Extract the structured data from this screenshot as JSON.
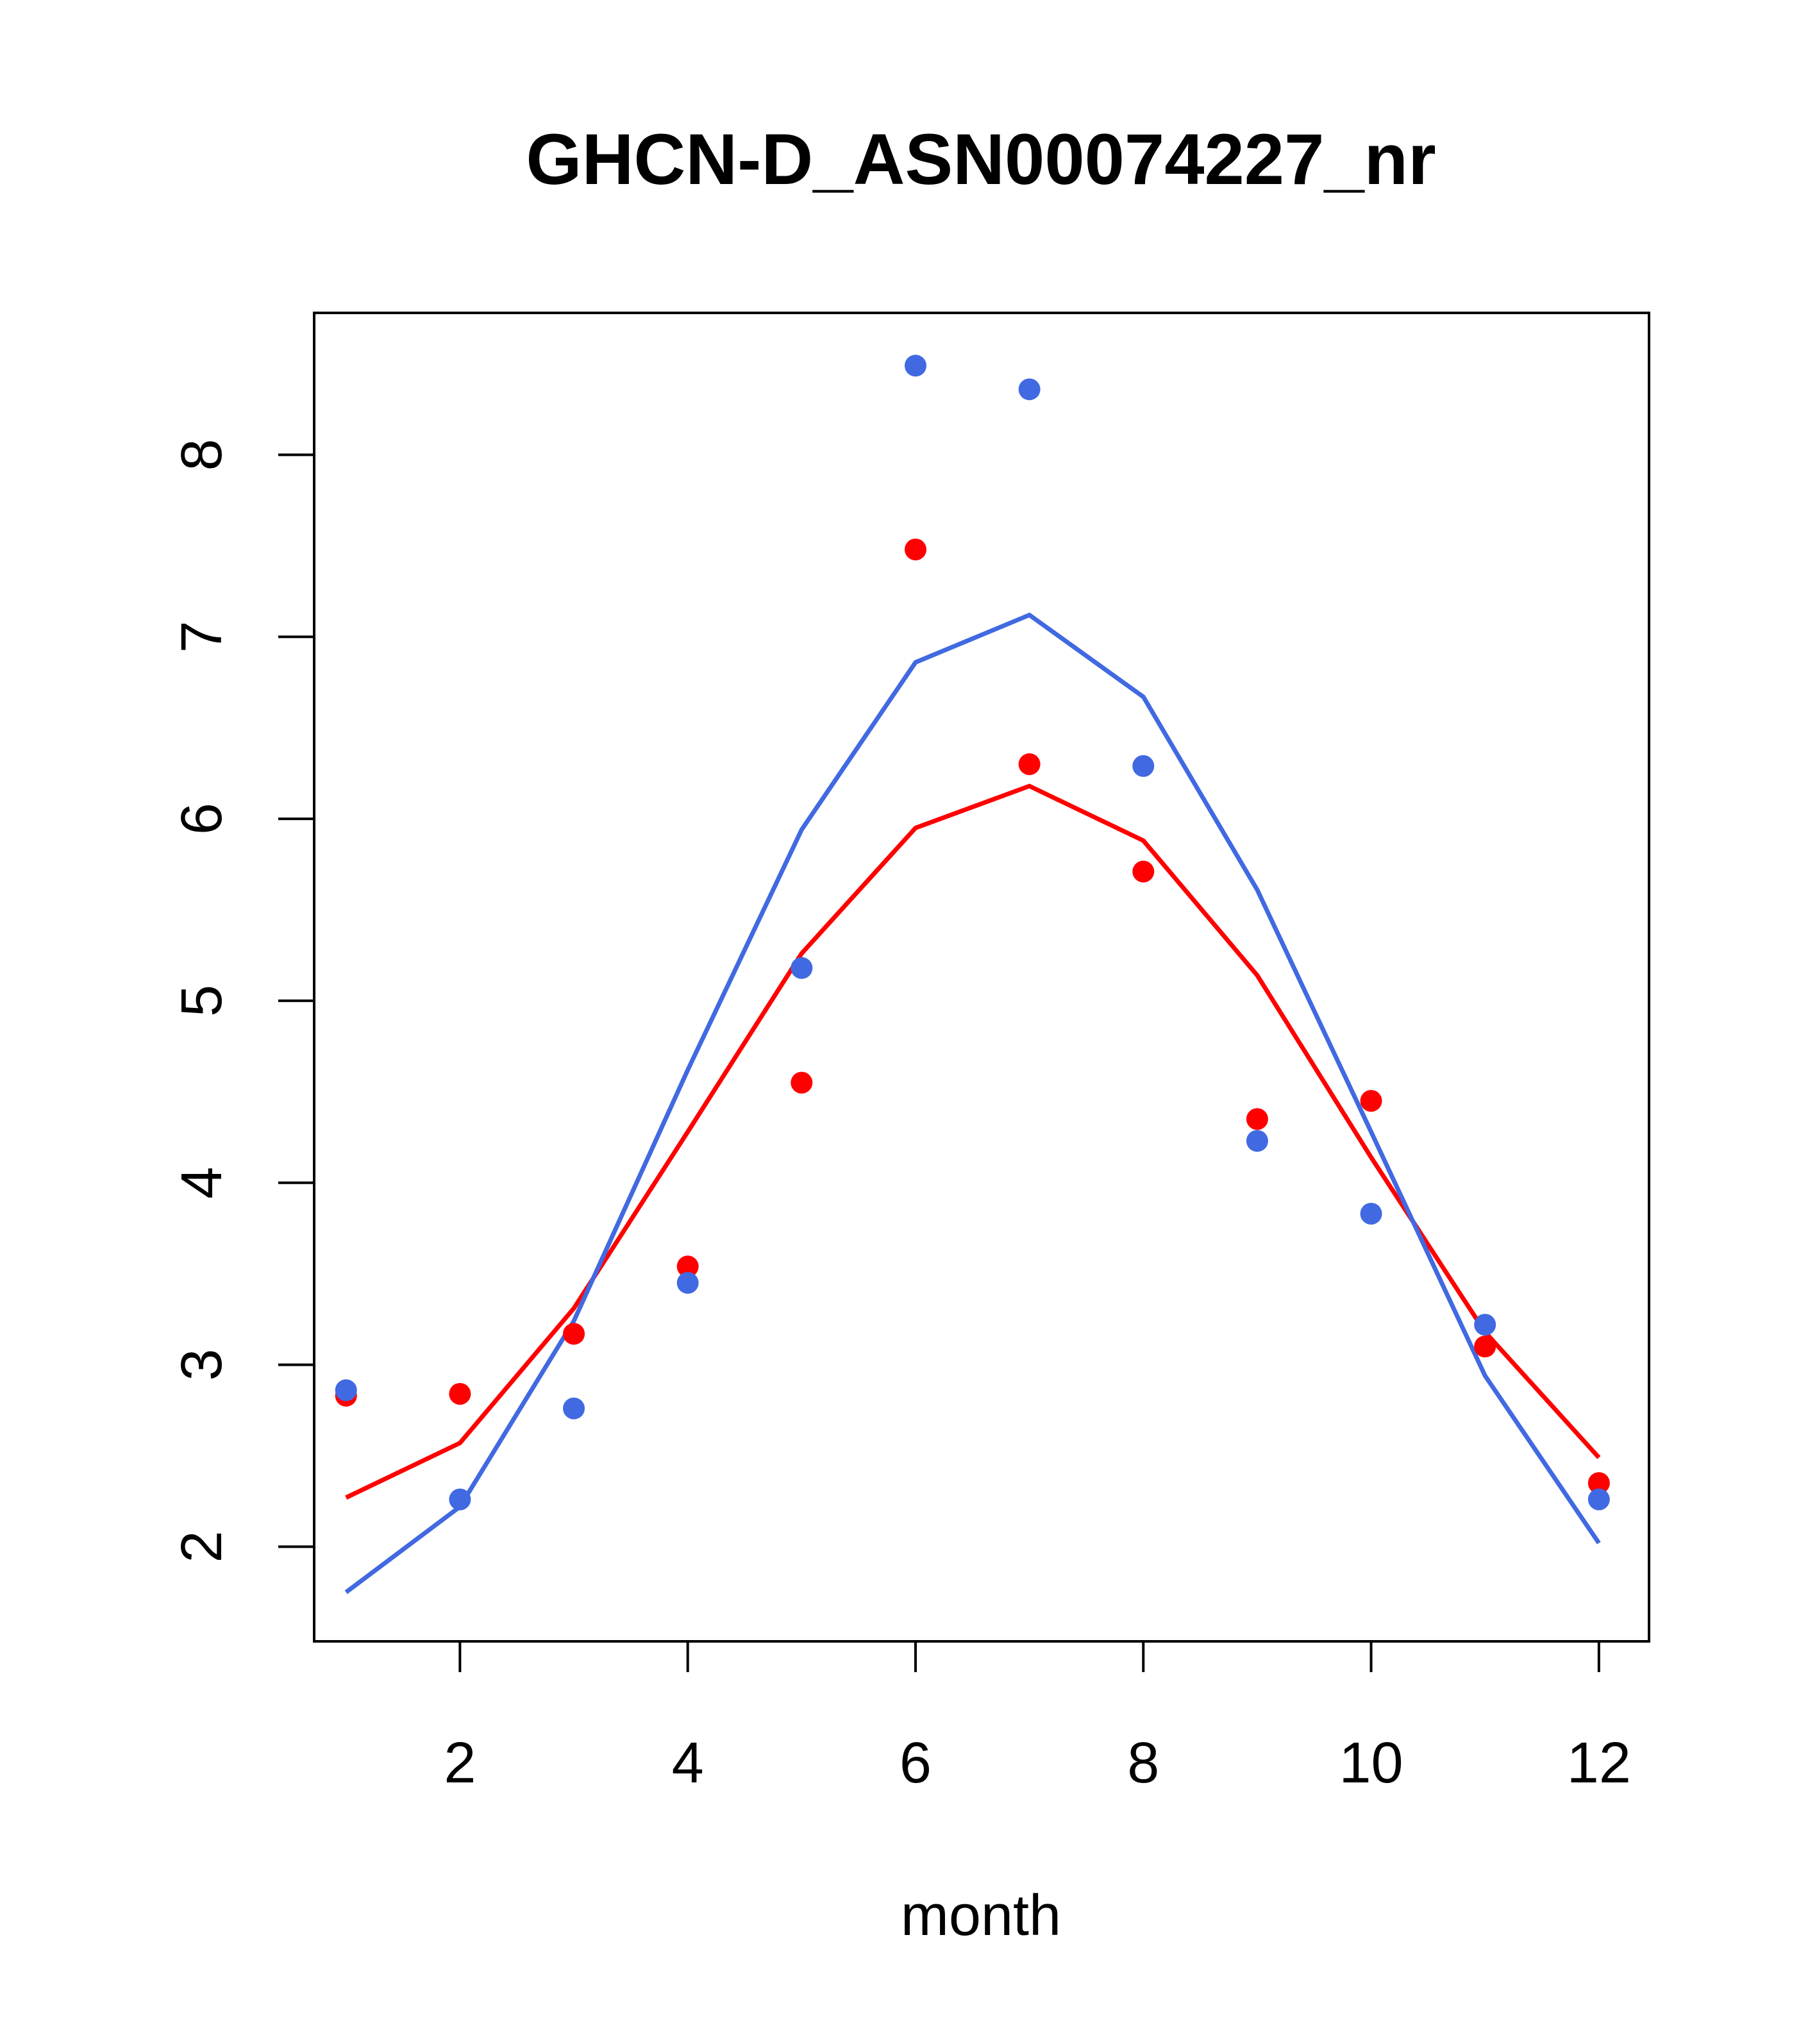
{
  "chart_data": {
    "type": "scatter",
    "title": "GHCN-D_ASN00074227_nr",
    "xlabel": "month",
    "ylabel": "",
    "xlim": [
      0.72,
      12.44
    ],
    "ylim": [
      1.48,
      8.78
    ],
    "x_ticks": [
      2,
      4,
      6,
      8,
      10,
      12
    ],
    "y_ticks": [
      2,
      3,
      4,
      5,
      6,
      7,
      8
    ],
    "x_tick_labels": [
      "2",
      "4",
      "6",
      "8",
      "10",
      "12"
    ],
    "y_tick_labels": [
      "2",
      "3",
      "4",
      "5",
      "6",
      "7",
      "8"
    ],
    "grid": false,
    "legend": "none",
    "x": [
      1,
      2,
      3,
      4,
      5,
      6,
      7,
      8,
      9,
      10,
      11,
      12
    ],
    "series": [
      {
        "color": "#ff0000",
        "points": [
          2.83,
          2.84,
          3.17,
          3.54,
          4.55,
          7.48,
          6.3,
          5.71,
          4.35,
          4.45,
          3.1,
          2.35
        ],
        "line": [
          2.27,
          2.57,
          3.31,
          4.28,
          5.26,
          5.95,
          6.18,
          5.88,
          5.14,
          4.14,
          3.18,
          2.49
        ]
      },
      {
        "color": "#4169e1",
        "points": [
          2.86,
          2.26,
          2.76,
          3.45,
          5.18,
          8.49,
          8.36,
          6.29,
          4.23,
          3.83,
          3.22,
          2.26
        ],
        "line": [
          1.75,
          2.22,
          3.24,
          4.62,
          5.94,
          6.86,
          7.12,
          6.67,
          5.61,
          4.28,
          2.94,
          2.02
        ]
      }
    ]
  }
}
